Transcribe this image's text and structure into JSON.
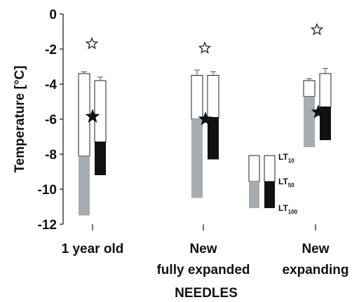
{
  "chart_data": {
    "type": "bar",
    "ylabel": "Temperature [°C]",
    "xlabel": "NEEDLES",
    "ylim": [
      -12,
      0
    ],
    "yticks": [
      0,
      -2,
      -4,
      -6,
      -8,
      -10,
      -12
    ],
    "categories": [
      {
        "lines": [
          "1 year old"
        ]
      },
      {
        "lines": [
          "New",
          "fully expanded"
        ]
      },
      {
        "lines": [
          "New",
          "expanding"
        ]
      }
    ],
    "colors": {
      "needle_fill": "#a7acb1",
      "twig_fill": "#111111",
      "open": "#ffffff",
      "outline": "#222222"
    },
    "needle_bars": [
      {
        "lt10": -3.4,
        "lt50": -8.1,
        "lt100": -11.5,
        "lt10_err": 0.1
      },
      {
        "lt10": -3.5,
        "lt50": -6.0,
        "lt100": -10.5,
        "lt10_err": 0.3
      },
      {
        "lt10": -3.8,
        "lt50": -4.7,
        "lt100": -7.6,
        "lt10_err": 0.1
      }
    ],
    "twig_bars": [
      {
        "lt10": -3.8,
        "lt50": -7.3,
        "lt100": -9.2,
        "lt10_err": 0.2
      },
      {
        "lt10": -3.5,
        "lt50": -5.9,
        "lt100": -8.3,
        "lt10_err": 0.2
      },
      {
        "lt10": -3.4,
        "lt50": -5.3,
        "lt100": -7.2,
        "lt10_err": 0.3
      }
    ],
    "stars_open": [
      -1.7,
      -1.95,
      -0.9
    ],
    "stars_filled": [
      -5.85,
      -6.0,
      -5.6
    ],
    "legend": {
      "items": [
        {
          "main": "LT",
          "sub": "10"
        },
        {
          "main": "LT",
          "sub": "50"
        },
        {
          "main": "LT",
          "sub": "100"
        }
      ]
    }
  }
}
